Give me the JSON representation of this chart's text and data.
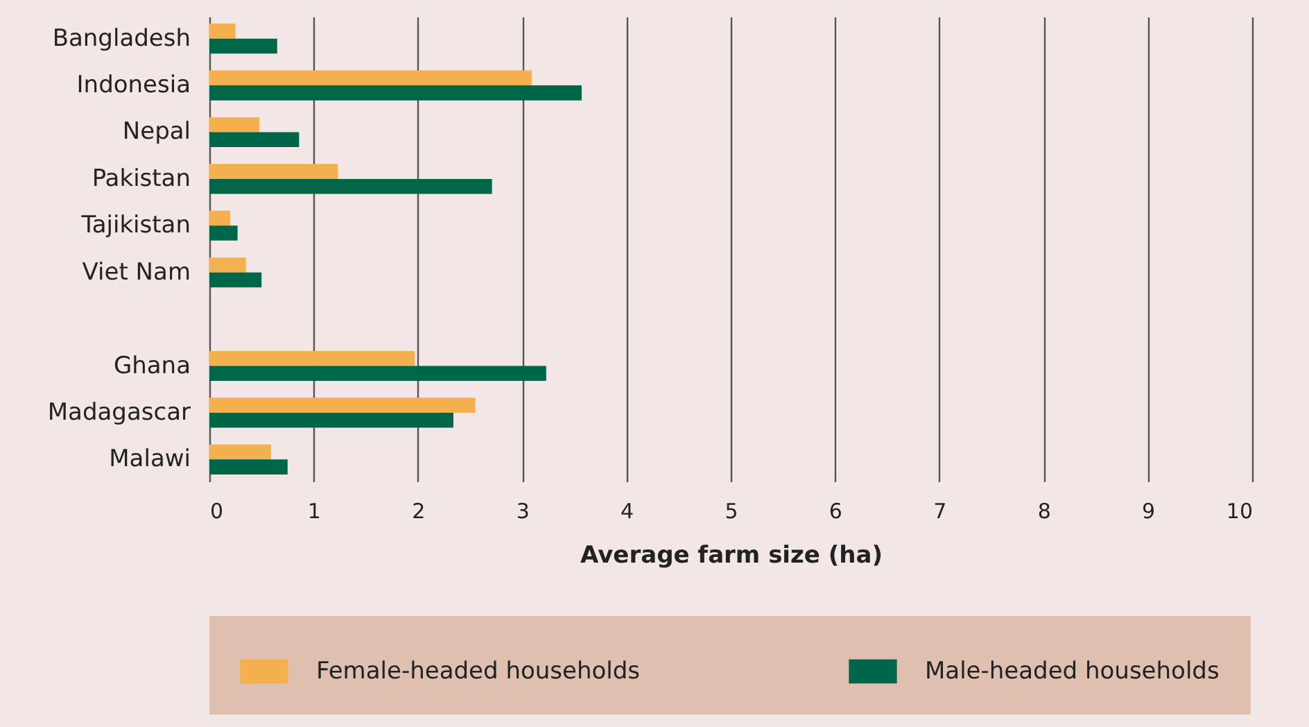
{
  "chart_data": {
    "type": "bar",
    "orientation": "horizontal",
    "xlabel": "Average farm size (ha)",
    "categories": [
      "Bangladesh",
      "Indonesia",
      "Nepal",
      "Pakistan",
      "Tajikistan",
      "Viet Nam",
      null,
      "Ghana",
      "Madagascar",
      "Malawi"
    ],
    "series": [
      {
        "name": "Female-headed households",
        "color": "#f4b04f",
        "values": [
          0.25,
          3.09,
          0.48,
          1.23,
          0.2,
          0.35,
          null,
          1.97,
          2.55,
          0.59
        ]
      },
      {
        "name": "Male-headed households",
        "color": "#00664a",
        "values": [
          0.65,
          3.57,
          0.86,
          2.71,
          0.27,
          0.5,
          null,
          3.23,
          2.34,
          0.75
        ]
      }
    ],
    "xlim": [
      0,
      10
    ],
    "xticks": [
      0,
      1,
      2,
      3,
      4,
      5,
      6,
      7,
      8,
      9,
      10
    ],
    "grid": "x",
    "legend": "bottom"
  }
}
